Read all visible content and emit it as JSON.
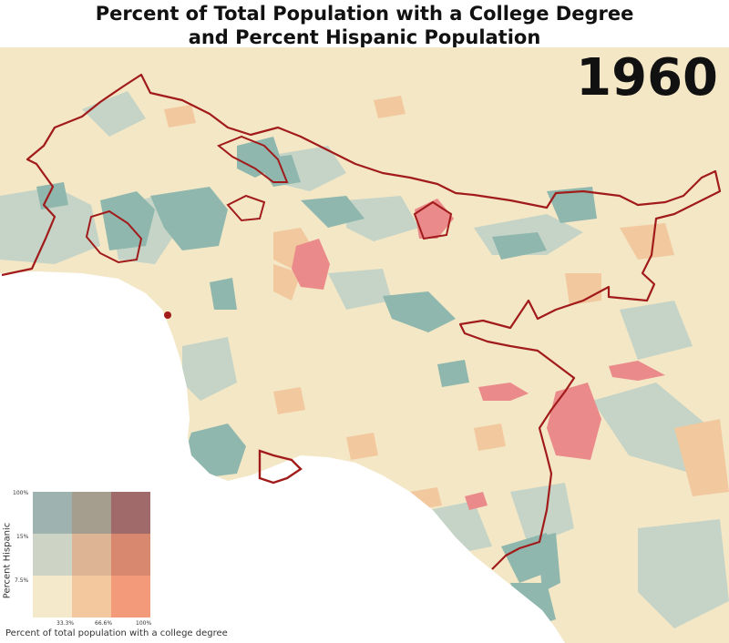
{
  "title": {
    "line1": "Percent of Total Population with a College Degree",
    "line2": "and Percent Hispanic Population"
  },
  "year": "1960",
  "legend": {
    "y_label": "Percent Hispanic",
    "x_label": "Percent of total population with a college degree",
    "y_ticks": [
      "100%",
      "15%",
      "7.5%"
    ],
    "x_ticks": [
      "33.3%",
      "66.6%",
      "100%"
    ],
    "colors": [
      [
        "#9eb3b0",
        "#a59e8f",
        "#a0696a"
      ],
      [
        "#cdd4c6",
        "#ddb595",
        "#d98870"
      ],
      [
        "#f5e9cb",
        "#f4c89e",
        "#f29a7a"
      ]
    ]
  },
  "colors": {
    "background": "#f4e7c6",
    "ocean": "#ffffff",
    "boundary": "#a11b1b",
    "teal": "#8eb5ad",
    "light_teal": "#c2d2c4",
    "orange": "#f1c79c",
    "red": "#e8888a"
  }
}
